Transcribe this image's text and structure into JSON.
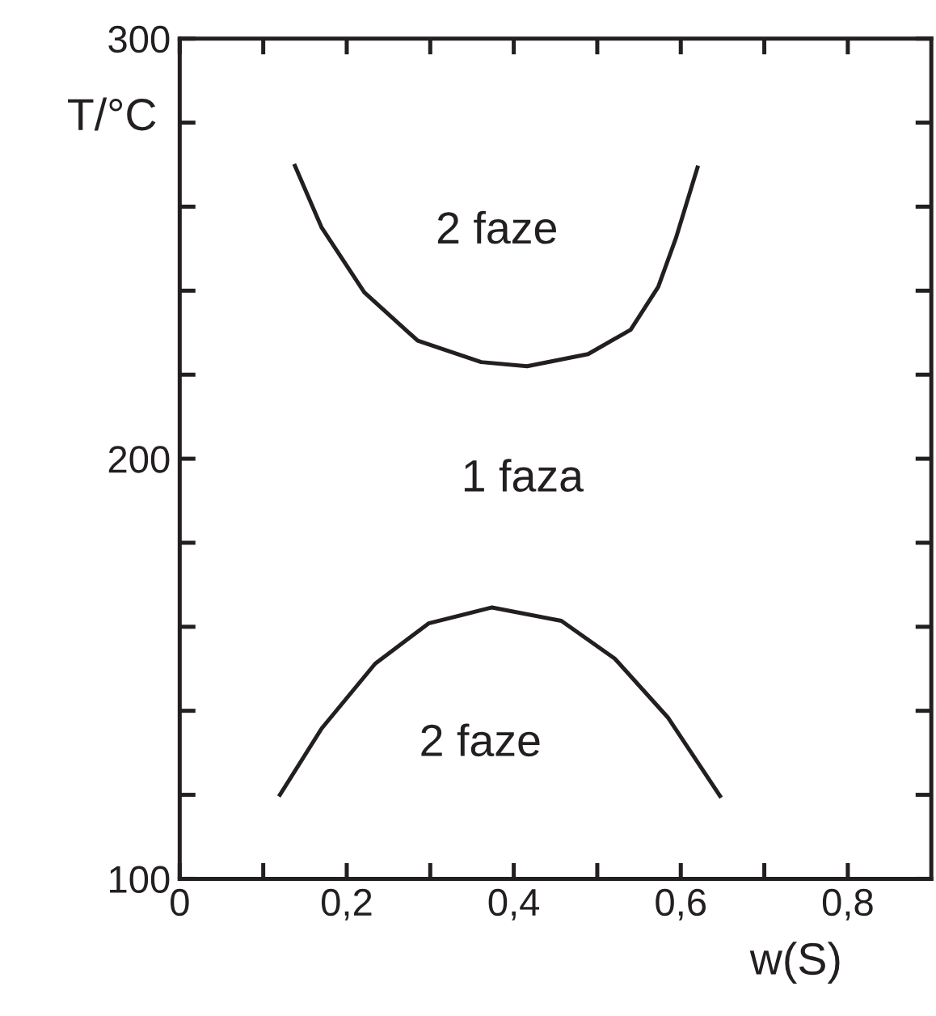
{
  "chart_data": {
    "type": "line",
    "xlabel": "w(S)",
    "ylabel": "T/°C",
    "xlim": [
      0,
      0.9
    ],
    "ylim": [
      100,
      300
    ],
    "xticks": [
      {
        "value": 0,
        "label": "0"
      },
      {
        "value": 0.1,
        "label": null
      },
      {
        "value": 0.2,
        "label": "0,2"
      },
      {
        "value": 0.3,
        "label": null
      },
      {
        "value": 0.4,
        "label": "0,4"
      },
      {
        "value": 0.5,
        "label": null
      },
      {
        "value": 0.6,
        "label": "0,6"
      },
      {
        "value": 0.7,
        "label": null
      },
      {
        "value": 0.8,
        "label": "0,8"
      }
    ],
    "yticks": [
      100,
      {
        "value": 120,
        "label": null
      },
      {
        "value": 140,
        "label": null
      },
      {
        "value": 160,
        "label": null
      },
      {
        "value": 180,
        "label": null
      },
      200,
      {
        "value": 220,
        "label": null
      },
      {
        "value": 240,
        "label": null
      },
      {
        "value": 260,
        "label": null
      },
      {
        "value": 280,
        "label": null
      },
      300
    ],
    "grid": false,
    "marker": "none",
    "line_style": "solid",
    "series": [
      {
        "color": "#231f20",
        "x": [
          0.138,
          0.17,
          0.221,
          0.285,
          0.361,
          0.416,
          0.489,
          0.54,
          0.573,
          0.594,
          0.62
        ],
        "values": [
          269.7,
          255,
          239.6,
          228.1,
          223,
          222,
          224.9,
          230.7,
          240.9,
          252.4,
          269.3
        ]
      },
      {
        "color": "#231f20",
        "x": [
          0.12,
          0.17,
          0.234,
          0.298,
          0.374,
          0.457,
          0.521,
          0.585,
          0.647
        ],
        "values": [
          120,
          135.8,
          151.2,
          160.8,
          164.6,
          161.4,
          152.4,
          138.3,
          119.7
        ]
      }
    ],
    "annotations": [
      "2 faze",
      "1 faza",
      "2 faze"
    ]
  }
}
